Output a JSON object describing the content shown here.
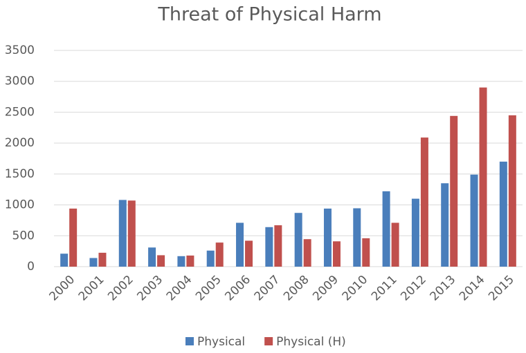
{
  "chart_data": {
    "type": "bar",
    "title": "Threat of Physical Harm",
    "categories": [
      "2000",
      "2001",
      "2002",
      "2003",
      "2004",
      "2005",
      "2006",
      "2007",
      "2008",
      "2009",
      "2010",
      "2011",
      "2012",
      "2013",
      "2014",
      "2015"
    ],
    "series": [
      {
        "name": "Physical",
        "color": "#4a7ebb",
        "values": [
          210,
          140,
          1080,
          310,
          170,
          260,
          710,
          640,
          870,
          940,
          945,
          1220,
          1100,
          1350,
          1490,
          1700
        ]
      },
      {
        "name": "Physical (H)",
        "color": "#c0504d",
        "values": [
          940,
          225,
          1070,
          185,
          180,
          390,
          420,
          670,
          445,
          410,
          460,
          710,
          2090,
          2440,
          2900,
          2450
        ]
      }
    ],
    "ylim": [
      0,
      3500
    ],
    "yticks": [
      0,
      500,
      1000,
      1500,
      2000,
      2500,
      3000,
      3500
    ],
    "grid": true,
    "legend": "bottom"
  }
}
